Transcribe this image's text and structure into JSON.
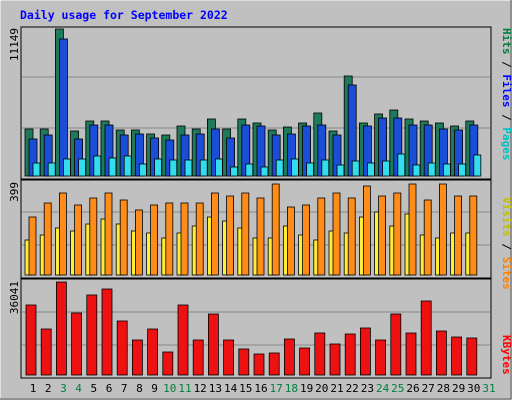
{
  "title": "Daily usage for September 2022",
  "panels": {
    "top": {
      "max_label": "11149",
      "legend": [
        {
          "text": "Pages",
          "color": "#00c0c0"
        },
        {
          "text": "Files",
          "color": "#0000ff"
        },
        {
          "text": "Hits",
          "color": "#008040"
        }
      ]
    },
    "mid": {
      "max_label": "399",
      "legend": [
        {
          "text": "Sites",
          "color": "#ff8000"
        },
        {
          "text": "Visits",
          "color": "#c0c000"
        }
      ]
    },
    "bot": {
      "max_label": "36041",
      "legend": [
        {
          "text": "KBytes",
          "color": "#ff0000"
        }
      ]
    }
  },
  "colors": {
    "hits": "#1e7a5a",
    "files": "#1a4ed8",
    "pages": "#33ddee",
    "sites": "#ff8c1a",
    "visits": "#ffee33",
    "kbytes": "#ee1111",
    "grid": "#888888",
    "bg": "#c0c0c0",
    "weekend": "#008040",
    "weekday": "#000000"
  },
  "chart_data": [
    {
      "type": "bar",
      "name": "hits-files-pages",
      "categories": [
        "1",
        "2",
        "3",
        "4",
        "5",
        "6",
        "7",
        "8",
        "9",
        "10",
        "11",
        "12",
        "13",
        "14",
        "15",
        "16",
        "17",
        "18",
        "19",
        "20",
        "21",
        "22",
        "23",
        "24",
        "25",
        "26",
        "27",
        "28",
        "29",
        "30",
        "31"
      ],
      "ylim": [
        0,
        11149
      ],
      "series": [
        {
          "name": "Hits",
          "values": [
            3600,
            3600,
            11149,
            3400,
            4200,
            4200,
            3500,
            3500,
            3200,
            3100,
            3800,
            3600,
            4300,
            3600,
            4300,
            4000,
            3500,
            3700,
            4000,
            4800,
            3400,
            7600,
            4000,
            4700,
            5000,
            4300,
            4200,
            4000,
            3800,
            4200,
            0
          ]
        },
        {
          "name": "Files",
          "values": [
            2800,
            3100,
            10400,
            2800,
            3900,
            3900,
            3100,
            3200,
            2900,
            2700,
            3100,
            3200,
            3600,
            2900,
            3900,
            3800,
            3100,
            3200,
            3800,
            3900,
            3100,
            6900,
            3800,
            4400,
            4400,
            3900,
            3900,
            3600,
            3500,
            3900,
            0
          ]
        },
        {
          "name": "Pages",
          "values": [
            1000,
            1000,
            1300,
            1300,
            1500,
            1400,
            1500,
            900,
            1300,
            1200,
            1200,
            1200,
            1300,
            700,
            900,
            700,
            1200,
            1300,
            1000,
            1200,
            800,
            1100,
            1000,
            1100,
            1700,
            800,
            1000,
            900,
            900,
            1600,
            0
          ]
        }
      ]
    },
    {
      "type": "bar",
      "name": "sites-visits",
      "categories": [
        "1",
        "2",
        "3",
        "4",
        "5",
        "6",
        "7",
        "8",
        "9",
        "10",
        "11",
        "12",
        "13",
        "14",
        "15",
        "16",
        "17",
        "18",
        "19",
        "20",
        "21",
        "22",
        "23",
        "24",
        "25",
        "26",
        "27",
        "28",
        "29",
        "30",
        "31"
      ],
      "ylim": [
        0,
        399
      ],
      "series": [
        {
          "name": "Sites",
          "values": [
            250,
            310,
            350,
            300,
            330,
            350,
            320,
            280,
            300,
            310,
            310,
            310,
            350,
            340,
            350,
            330,
            390,
            290,
            300,
            330,
            350,
            330,
            380,
            340,
            350,
            390,
            320,
            390,
            340,
            340,
            0
          ]
        },
        {
          "name": "Visits",
          "values": [
            150,
            170,
            200,
            190,
            220,
            240,
            220,
            190,
            180,
            160,
            180,
            210,
            250,
            230,
            200,
            160,
            160,
            210,
            170,
            150,
            190,
            180,
            250,
            270,
            210,
            260,
            170,
            160,
            180,
            180,
            0
          ]
        }
      ]
    },
    {
      "type": "bar",
      "name": "kbytes",
      "categories": [
        "1",
        "2",
        "3",
        "4",
        "5",
        "6",
        "7",
        "8",
        "9",
        "10",
        "11",
        "12",
        "13",
        "14",
        "15",
        "16",
        "17",
        "18",
        "19",
        "20",
        "21",
        "22",
        "23",
        "24",
        "25",
        "26",
        "27",
        "28",
        "29",
        "30",
        "31"
      ],
      "ylim": [
        0,
        36041
      ],
      "series": [
        {
          "name": "KBytes",
          "values": [
            27000,
            18000,
            36041,
            24000,
            31000,
            33500,
            21000,
            13500,
            17800,
            8800,
            27000,
            13500,
            23500,
            13700,
            10000,
            8000,
            8600,
            13800,
            10500,
            16400,
            12200,
            15700,
            18300,
            13500,
            23500,
            16400,
            28500,
            17000,
            14700,
            14500,
            0
          ]
        }
      ]
    }
  ],
  "x_labels": [
    "1",
    "2",
    "3",
    "4",
    "5",
    "6",
    "7",
    "8",
    "9",
    "10",
    "11",
    "12",
    "13",
    "14",
    "15",
    "16",
    "17",
    "18",
    "19",
    "20",
    "21",
    "22",
    "23",
    "24",
    "25",
    "26",
    "27",
    "28",
    "29",
    "30",
    "31"
  ],
  "weekend_days": [
    3,
    4,
    10,
    11,
    17,
    18,
    24,
    25,
    31
  ]
}
